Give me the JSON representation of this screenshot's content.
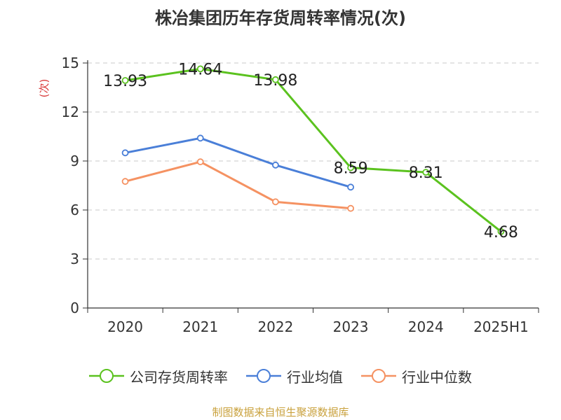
{
  "chart_data": {
    "type": "line",
    "title": "株冶集团历年存货周转率情况(次)",
    "ylabel": "(次)",
    "xlabel": "",
    "categories": [
      "2020",
      "2021",
      "2022",
      "2023",
      "2024",
      "2025H1"
    ],
    "ylim": [
      0,
      15
    ],
    "yticks": [
      "0",
      "3",
      "6",
      "9",
      "12",
      "15"
    ],
    "grid": "horizontal-dashed",
    "legend_position": "bottom",
    "series": [
      {
        "name": "公司存货周转率",
        "color": "#5bc21f",
        "values": [
          13.93,
          14.64,
          13.98,
          8.59,
          8.31,
          4.68
        ],
        "labels": [
          "13.93",
          "14.64",
          "13.98",
          "8.59",
          "8.31",
          "4.68"
        ]
      },
      {
        "name": "行业均值",
        "color": "#4a7fd8",
        "values": [
          9.5,
          10.4,
          8.75,
          7.4,
          null,
          null
        ]
      },
      {
        "name": "行业中位数",
        "color": "#f59262",
        "values": [
          7.75,
          8.95,
          6.5,
          6.1,
          null,
          null
        ]
      }
    ]
  },
  "source": "制图数据来自恒生聚源数据库"
}
